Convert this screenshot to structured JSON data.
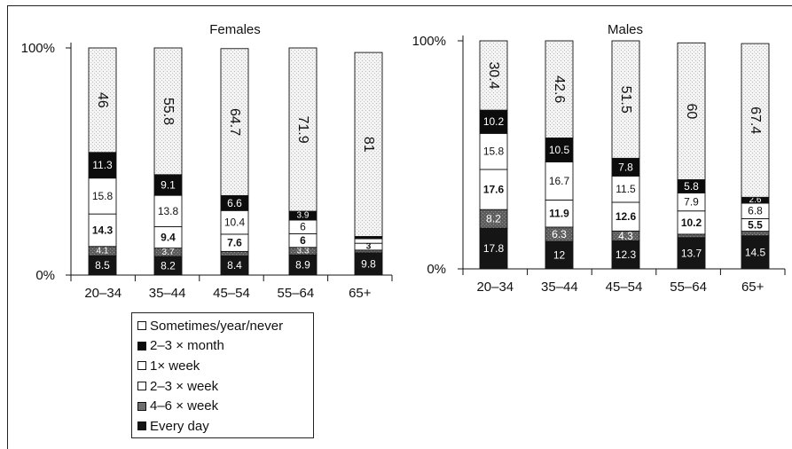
{
  "colors": {
    "every_day": "#151515",
    "four_six_week": "#6e6e6e",
    "two_three_week": "#ffffff",
    "one_week": "#ffffff",
    "two_three_month": "#0c0c0c",
    "sometimes": "#ffffff",
    "stipple": "#c9c9c9"
  },
  "legend": {
    "items": [
      {
        "key": "sometimes",
        "label": "Sometimes/year/never",
        "color": "#f4f4f4"
      },
      {
        "key": "two_three_month",
        "label": "2–3 × month",
        "color": "#0c0c0c"
      },
      {
        "key": "one_week",
        "label": "1×  week",
        "color": "#ffffff"
      },
      {
        "key": "two_three_week",
        "label": "2–3 × week",
        "color": "#ffffff"
      },
      {
        "key": "four_six_week",
        "label": "4–6 × week",
        "color": "#6e6e6e"
      },
      {
        "key": "every_day",
        "label": "Every day",
        "color": "#151515"
      }
    ]
  },
  "chart_data": [
    {
      "type": "bar",
      "stacked": true,
      "title": "Females",
      "categories": [
        "20–34",
        "35–44",
        "45–54",
        "55–64",
        "65+"
      ],
      "ytick_labels": [
        "0%",
        "100%"
      ],
      "ylim": [
        0,
        100
      ],
      "series": [
        {
          "name": "Every day",
          "key": "every_day",
          "values": [
            8.5,
            8.2,
            8.4,
            8.9,
            9.8
          ],
          "labels": [
            "8.5",
            "8.2",
            "8.4",
            "8.9",
            "9.8"
          ]
        },
        {
          "name": "4–6 × week",
          "key": "four_six_week",
          "values": [
            4.1,
            3.7,
            2.0,
            3.3,
            1.2
          ],
          "labels": [
            "4.1",
            "3.7",
            "",
            "3.3",
            ""
          ]
        },
        {
          "name": "2–3 × week",
          "key": "two_three_week",
          "values": [
            14.3,
            9.4,
            7.6,
            6.0,
            3.0
          ],
          "labels": [
            "14.3",
            "9.4",
            "7.6",
            "6",
            "3"
          ]
        },
        {
          "name": "1×  week",
          "key": "one_week",
          "values": [
            15.8,
            13.8,
            10.4,
            6.0,
            2.0
          ],
          "labels": [
            "15.8",
            "13.8",
            "10.4",
            "6",
            ""
          ]
        },
        {
          "name": "2–3 × month",
          "key": "two_three_month",
          "values": [
            11.3,
            9.1,
            6.6,
            3.9,
            1.0
          ],
          "labels": [
            "11.3",
            "9.1",
            "6.6",
            "3.9",
            ""
          ]
        },
        {
          "name": "Sometimes/year/never",
          "key": "sometimes",
          "values": [
            46,
            55.8,
            64.7,
            71.9,
            81
          ],
          "labels": [
            "46",
            "55.8",
            "64.7",
            "71.9",
            "81"
          ]
        }
      ]
    },
    {
      "type": "bar",
      "stacked": true,
      "title": "Males",
      "categories": [
        "20–34",
        "35–44",
        "45–54",
        "55–64",
        "65+"
      ],
      "ytick_labels": [
        "0%",
        "100%"
      ],
      "ylim": [
        0,
        100
      ],
      "series": [
        {
          "name": "Every day",
          "key": "every_day",
          "values": [
            17.8,
            12,
            12.3,
            13.7,
            14.5
          ],
          "labels": [
            "17.8",
            "12",
            "12.3",
            "13.7",
            "14.5"
          ]
        },
        {
          "name": "4–6 × week",
          "key": "four_six_week",
          "values": [
            8.2,
            6.3,
            4.3,
            1.5,
            2.0
          ],
          "labels": [
            "8.2",
            "6.3",
            "4.3",
            "",
            ""
          ]
        },
        {
          "name": "2–3 × week",
          "key": "two_three_week",
          "values": [
            17.6,
            11.9,
            12.6,
            10.2,
            5.5
          ],
          "labels": [
            "17.6",
            "11.9",
            "12.6",
            "10.2",
            "5.5"
          ]
        },
        {
          "name": "1×  week",
          "key": "one_week",
          "values": [
            15.8,
            16.7,
            11.5,
            7.9,
            6.8
          ],
          "labels": [
            "15.8",
            "16.7",
            "11.5",
            "7.9",
            "6.8"
          ]
        },
        {
          "name": "2–3 × month",
          "key": "two_three_month",
          "values": [
            10.2,
            10.5,
            7.8,
            5.8,
            2.6
          ],
          "labels": [
            "10.2",
            "10.5",
            "7.8",
            "5.8",
            "2.6"
          ]
        },
        {
          "name": "Sometimes/year/never",
          "key": "sometimes",
          "values": [
            30.4,
            42.6,
            51.5,
            60,
            67.4
          ],
          "labels": [
            "30.4",
            "42.6",
            "51.5",
            "60",
            "67.4"
          ]
        }
      ]
    }
  ]
}
